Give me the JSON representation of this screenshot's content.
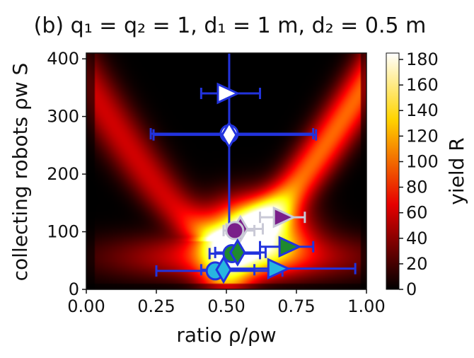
{
  "chart_data": {
    "type": "heatmap",
    "title": "(b) q₁ = q₂ = 1, d₁ = 1 m, d₂ = 0.5 m",
    "xlabel": "ratio ρ/ρw",
    "ylabel": "collecting robots ρw S",
    "colorbar_label": "yield R",
    "xlim": [
      0,
      1
    ],
    "ylim": [
      0,
      410
    ],
    "clim": [
      0,
      185
    ],
    "colormap": "hot",
    "x_ticks": [
      "0.00",
      "0.25",
      "0.50",
      "0.75",
      "1.00"
    ],
    "y_ticks": [
      "0",
      "100",
      "200",
      "300",
      "400"
    ],
    "colorbar_ticks": [
      "0",
      "20",
      "40",
      "60",
      "80",
      "100",
      "120",
      "140",
      "160",
      "180"
    ],
    "vertical_errorbar": {
      "x": 0.51,
      "y_low": 100,
      "y_high": 410,
      "color": "#2233dd"
    },
    "markers": [
      {
        "shape": "triangle-right",
        "x": 0.5,
        "y": 340,
        "xerr_low": 0.41,
        "xerr_high": 0.62,
        "fill": "#ffffff",
        "edge": "#2233dd"
      },
      {
        "shape": "circle",
        "x": 0.51,
        "y": 270,
        "xerr_low": 0.23,
        "xerr_high": 0.81,
        "fill": "#ffffff",
        "edge": "#2233dd"
      },
      {
        "shape": "diamond",
        "x": 0.51,
        "y": 268,
        "xerr_low": 0.24,
        "xerr_high": 0.82,
        "fill": "#ffffff",
        "edge": "#2233dd"
      },
      {
        "shape": "diamond",
        "x": 0.55,
        "y": 105,
        "xerr_low": 0.5,
        "xerr_high": 0.63,
        "fill": "#7a1f8a",
        "edge": "#c9c9d6"
      },
      {
        "shape": "circle",
        "x": 0.53,
        "y": 102,
        "xerr_low": 0.49,
        "xerr_high": 0.6,
        "fill": "#7a1f8a",
        "edge": "#c9c9d6"
      },
      {
        "shape": "triangle-right",
        "x": 0.7,
        "y": 125,
        "xerr_low": 0.62,
        "xerr_high": 0.78,
        "fill": "#7a1f8a",
        "edge": "#c9c9d6"
      },
      {
        "shape": "circle",
        "x": 0.52,
        "y": 62,
        "xerr_low": 0.44,
        "xerr_high": 0.62,
        "fill": "#1f8a2e",
        "edge": "#2233dd"
      },
      {
        "shape": "diamond",
        "x": 0.54,
        "y": 64,
        "xerr_low": 0.46,
        "xerr_high": 0.64,
        "fill": "#1f8a2e",
        "edge": "#2233dd"
      },
      {
        "shape": "triangle-right",
        "x": 0.72,
        "y": 74,
        "xerr_low": 0.62,
        "xerr_high": 0.81,
        "fill": "#1f8a2e",
        "edge": "#2233dd"
      },
      {
        "shape": "circle",
        "x": 0.46,
        "y": 32,
        "xerr_low": 0.25,
        "xerr_high": 0.7,
        "fill": "#27b6e0",
        "edge": "#2233dd"
      },
      {
        "shape": "diamond",
        "x": 0.49,
        "y": 34,
        "xerr_low": 0.41,
        "xerr_high": 0.6,
        "fill": "#27b6e0",
        "edge": "#2233dd"
      },
      {
        "shape": "triangle-right",
        "x": 0.68,
        "y": 36,
        "xerr_low": 0.48,
        "xerr_high": 0.96,
        "fill": "#27b6e0",
        "edge": "#2233dd"
      }
    ]
  }
}
